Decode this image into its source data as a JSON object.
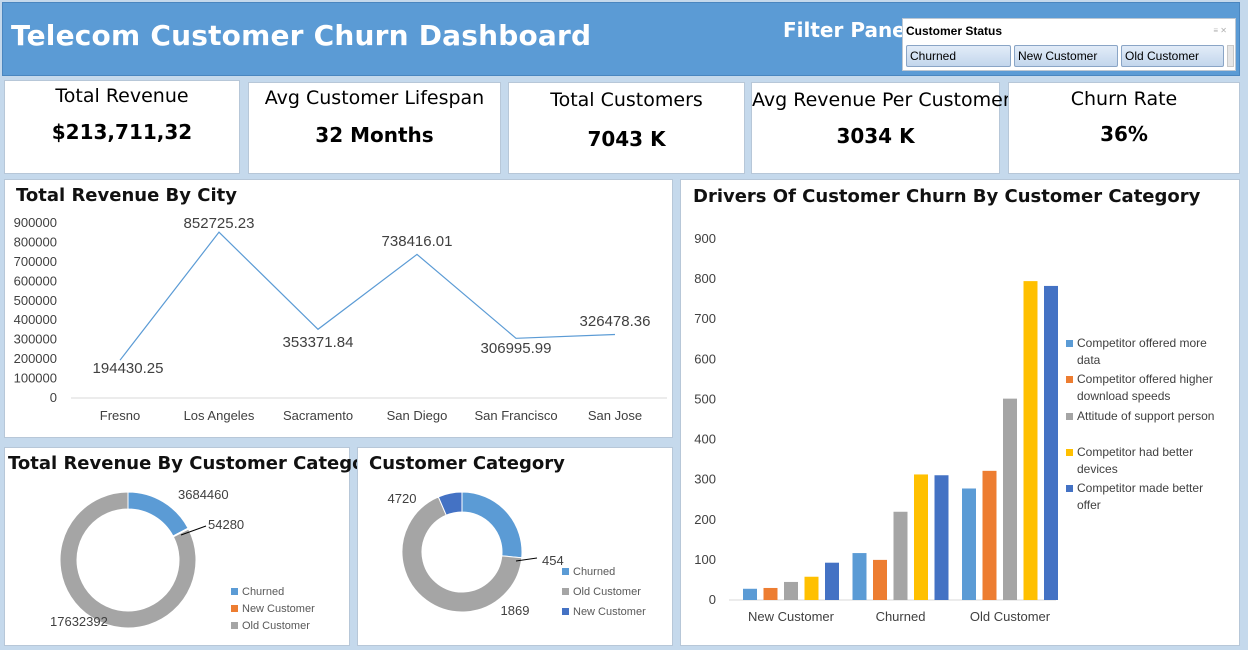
{
  "header": {
    "title": "Telecom Customer Churn Dashboard",
    "filter_label": "Filter Panel",
    "slicer": {
      "title": "Customer Status",
      "options": [
        "Churned",
        "New Customer",
        "Old Customer"
      ],
      "icons": [
        "multi-select-icon",
        "clear-filter-icon"
      ]
    }
  },
  "kpis": [
    {
      "label": "Total Revenue",
      "value": "$213,711,32"
    },
    {
      "label": "Avg Customer Lifespan",
      "value": "32 Months"
    },
    {
      "label": "Total Customers",
      "value": "7043 K"
    },
    {
      "label": "Avg Revenue Per Customer",
      "value": "3034 K"
    },
    {
      "label": "Churn Rate",
      "value": "36%"
    }
  ],
  "colors": {
    "header_bg": "#5b9bd5",
    "page_bg": "#c5d9ec",
    "blue": "#5b9bd5",
    "orange": "#ed7d31",
    "gray": "#a5a5a5",
    "yellow": "#ffc000",
    "dark_blue": "#4472c4"
  },
  "chart_data": [
    {
      "id": "revenue-by-city",
      "type": "line",
      "title": "Total Revenue By City",
      "categories": [
        "Fresno",
        "Los Angeles",
        "Sacramento",
        "San Diego",
        "San Francisco",
        "San Jose"
      ],
      "values": [
        194430.25,
        852725.23,
        353371.84,
        738416.01,
        306995.99,
        326478.36
      ],
      "data_labels": [
        "194430.25",
        "852725.23",
        "353371.84",
        "738416.01",
        "306995.99",
        "326478.36"
      ],
      "y_ticks": [
        "0",
        "100000",
        "200000",
        "300000",
        "400000",
        "500000",
        "600000",
        "700000",
        "800000",
        "900000"
      ],
      "ylim": [
        0,
        900000
      ],
      "color": "#5b9bd5",
      "grid": false
    },
    {
      "id": "revenue-by-category",
      "type": "pie",
      "subtype": "doughnut",
      "title": "Total Revenue By Customer Category",
      "categories": [
        "Churned",
        "New Customer",
        "Old Customer"
      ],
      "values": [
        3684460,
        54280,
        17632392
      ],
      "data_labels": [
        "3684460",
        "54280",
        "17632392"
      ],
      "colors": [
        "#5b9bd5",
        "#ed7d31",
        "#a5a5a5"
      ],
      "legend": "bottom-right"
    },
    {
      "id": "customer-category",
      "type": "pie",
      "subtype": "doughnut",
      "title": "Customer Category",
      "categories": [
        "Churned",
        "Old Customer",
        "New Customer"
      ],
      "values": [
        1869,
        4720,
        454
      ],
      "data_labels": [
        "1869",
        "4720",
        "454"
      ],
      "colors": [
        "#5b9bd5",
        "#a5a5a5",
        "#4472c4"
      ],
      "legend": "right"
    },
    {
      "id": "churn-drivers",
      "type": "bar",
      "title": "Drivers Of Customer Churn  By Customer Category",
      "categories": [
        "New Customer",
        "Churned",
        "Old Customer"
      ],
      "series": [
        {
          "name": "Competitor offered more data",
          "values": [
            28,
            117,
            278
          ],
          "color": "#5b9bd5"
        },
        {
          "name": "Competitor offered higher download speeds",
          "values": [
            30,
            100,
            322
          ],
          "color": "#ed7d31"
        },
        {
          "name": "Attitude of support person",
          "values": [
            45,
            220,
            502
          ],
          "color": "#a5a5a5"
        },
        {
          "name": "Competitor had better devices",
          "values": [
            58,
            313,
            795
          ],
          "color": "#ffc000"
        },
        {
          "name": "Competitor made better offer",
          "values": [
            93,
            311,
            783
          ],
          "color": "#4472c4"
        }
      ],
      "y_ticks": [
        "0",
        "100",
        "200",
        "300",
        "400",
        "500",
        "600",
        "700",
        "800",
        "900"
      ],
      "ylim": [
        0,
        900
      ],
      "legend": "right",
      "grid": false
    }
  ]
}
